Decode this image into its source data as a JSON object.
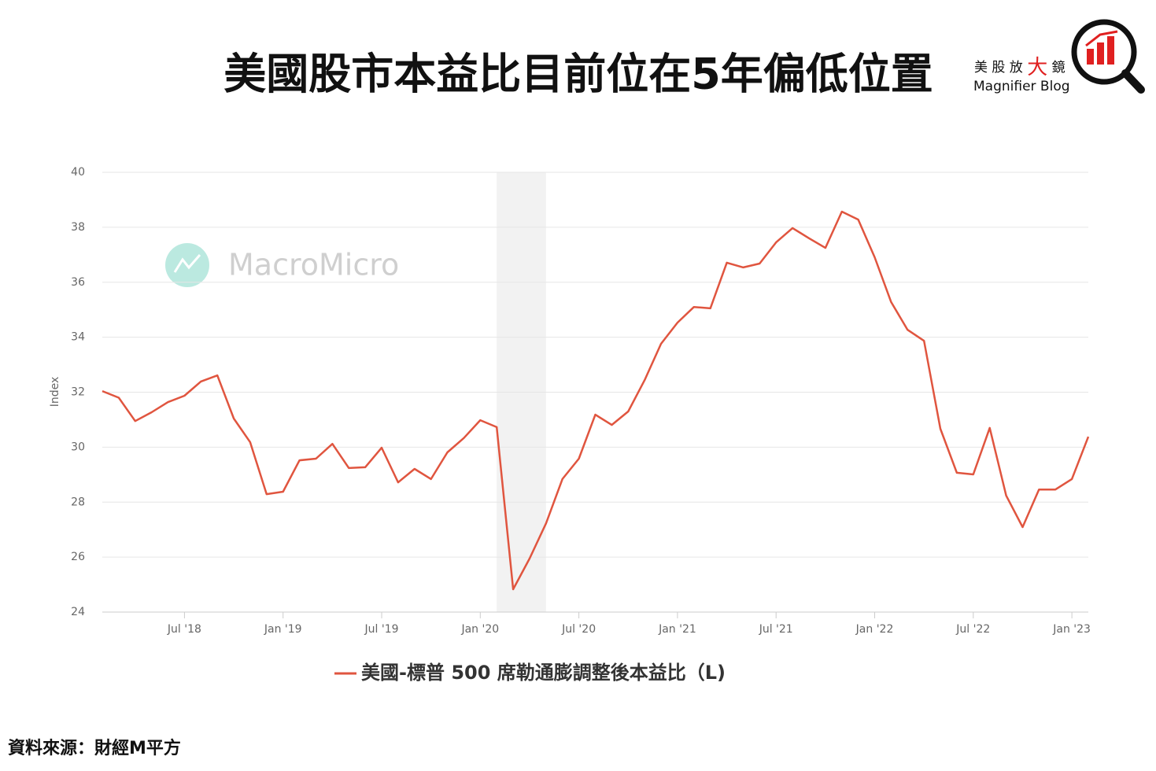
{
  "title": "美國股市本益比目前位在5年偏低位置",
  "brand": {
    "name_parts": [
      "美 股 放 ",
      "大",
      " 鏡"
    ],
    "subtitle": "Magnifier Blog"
  },
  "watermark": "MacroMicro",
  "source": "資料來源：財經M平方",
  "chart_data": {
    "type": "line",
    "y_label": "Index",
    "x": [
      "2018-02",
      "2018-03",
      "2018-04",
      "2018-05",
      "2018-06",
      "2018-07",
      "2018-08",
      "2018-09",
      "2018-10",
      "2018-11",
      "2018-12",
      "2019-01",
      "2019-02",
      "2019-03",
      "2019-04",
      "2019-05",
      "2019-06",
      "2019-07",
      "2019-08",
      "2019-09",
      "2019-10",
      "2019-11",
      "2019-12",
      "2020-01",
      "2020-02",
      "2020-03",
      "2020-04",
      "2020-05",
      "2020-06",
      "2020-07",
      "2020-08",
      "2020-09",
      "2020-10",
      "2020-11",
      "2020-12",
      "2021-01",
      "2021-02",
      "2021-03",
      "2021-04",
      "2021-05",
      "2021-06",
      "2021-07",
      "2021-08",
      "2021-09",
      "2021-10",
      "2021-11",
      "2021-12",
      "2022-01",
      "2022-02",
      "2022-03",
      "2022-04",
      "2022-05",
      "2022-06",
      "2022-07",
      "2022-08",
      "2022-09",
      "2022-10",
      "2022-11",
      "2022-12",
      "2023-01",
      "2023-02"
    ],
    "series": [
      {
        "name": "美國-標普 500 席勒通膨調整後本益比（L)",
        "color": "#e0553f",
        "values": [
          32.04,
          31.8,
          30.95,
          31.27,
          31.64,
          31.87,
          32.39,
          32.61,
          31.04,
          30.18,
          28.29,
          28.38,
          29.52,
          29.58,
          30.12,
          29.24,
          29.27,
          29.98,
          28.72,
          29.21,
          28.84,
          29.81,
          30.33,
          30.98,
          30.73,
          24.83,
          25.95,
          27.23,
          28.84,
          29.58,
          31.18,
          30.81,
          31.3,
          32.44,
          33.76,
          34.53,
          35.1,
          35.05,
          36.71,
          36.54,
          36.68,
          37.45,
          37.97,
          37.6,
          37.25,
          38.57,
          38.28,
          36.91,
          35.28,
          34.27,
          33.87,
          30.67,
          29.07,
          29.01,
          30.7,
          28.24,
          27.09,
          28.46,
          28.46,
          28.84,
          30.38
        ]
      }
    ],
    "xlim": [
      "2018-02",
      "2023-02"
    ],
    "xticks": [
      {
        "value": "2018-07",
        "label": "Jul '18"
      },
      {
        "value": "2019-01",
        "label": "Jan '19"
      },
      {
        "value": "2019-07",
        "label": "Jul '19"
      },
      {
        "value": "2020-01",
        "label": "Jan '20"
      },
      {
        "value": "2020-07",
        "label": "Jul '20"
      },
      {
        "value": "2021-01",
        "label": "Jan '21"
      },
      {
        "value": "2021-07",
        "label": "Jul '21"
      },
      {
        "value": "2022-01",
        "label": "Jan '22"
      },
      {
        "value": "2022-07",
        "label": "Jul '22"
      },
      {
        "value": "2023-01",
        "label": "Jan '23"
      }
    ],
    "ylim": [
      24,
      40
    ],
    "yticks": [
      24,
      26,
      28,
      30,
      32,
      34,
      36,
      38,
      40
    ],
    "grid": true,
    "shaded_ranges": [
      [
        "2020-02",
        "2020-05"
      ]
    ],
    "shade_color": "#f2f2f2"
  }
}
